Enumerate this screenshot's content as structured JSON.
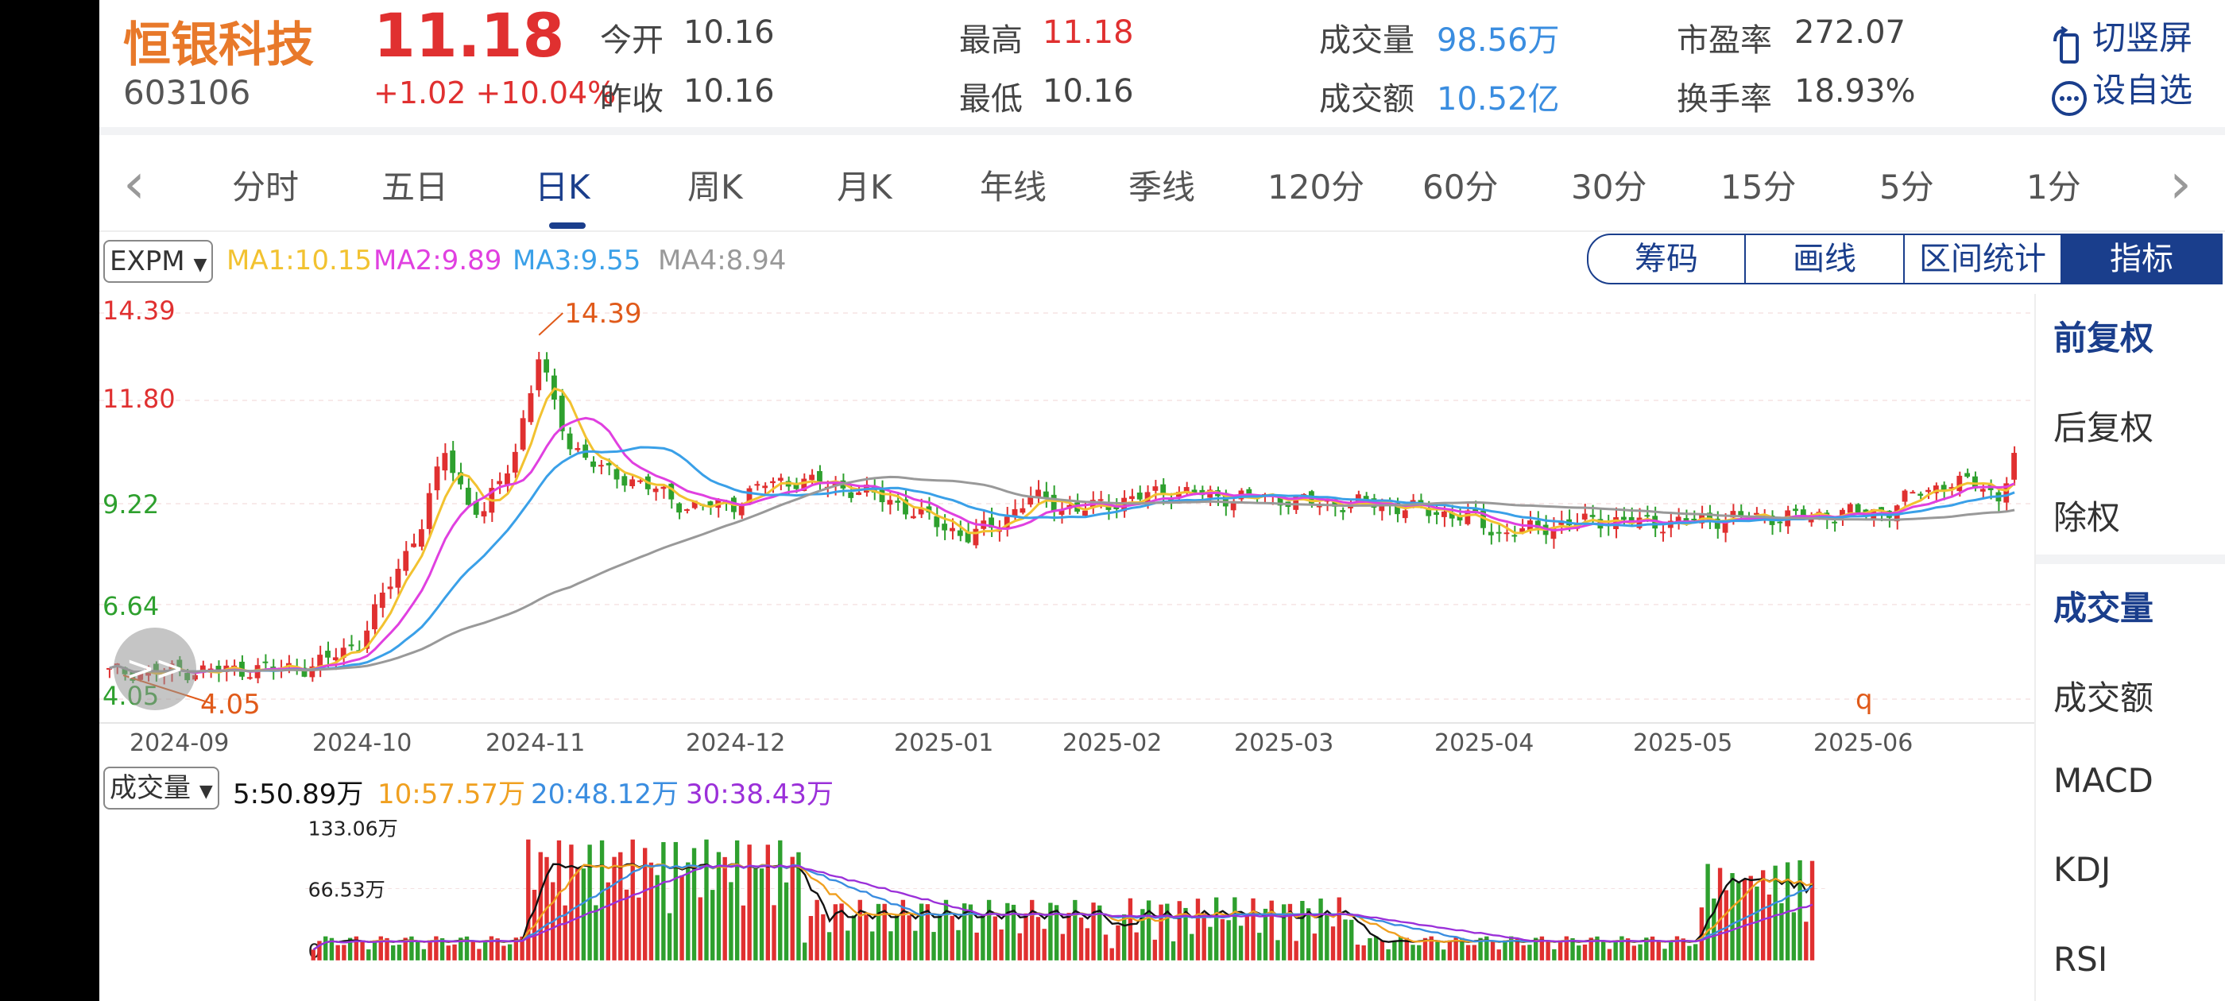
{
  "header": {
    "name": "恒银科技",
    "code": "603106",
    "price": "11.18",
    "change": "+1.02",
    "change_pct": "+10.04%",
    "quotes": [
      {
        "label": "今开",
        "value": "10.16",
        "color": "#444444"
      },
      {
        "label": "昨收",
        "value": "10.16",
        "color": "#444444"
      },
      {
        "label": "最高",
        "value": "11.18",
        "color": "#e03030"
      },
      {
        "label": "最低",
        "value": "10.16",
        "color": "#444444"
      },
      {
        "label": "成交量",
        "value": "98.56万",
        "color": "#3a8de0"
      },
      {
        "label": "成交额",
        "value": "10.52亿",
        "color": "#3a8de0"
      },
      {
        "label": "市盈率",
        "value": "272.07",
        "color": "#444444"
      },
      {
        "label": "换手率",
        "value": "18.93%",
        "color": "#444444"
      }
    ],
    "actions": [
      {
        "icon": "rotate-screen-icon",
        "label": "切竖屏"
      },
      {
        "icon": "more-circle-icon",
        "label": "设自选"
      }
    ]
  },
  "tabs": {
    "items": [
      "分时",
      "五日",
      "日K",
      "周K",
      "月K",
      "年线",
      "季线",
      "120分",
      "60分",
      "30分",
      "15分",
      "5分",
      "1分"
    ],
    "active": "日K",
    "prev_icon": "chevron-left-icon",
    "next_icon": "chevron-right-icon"
  },
  "toolbar": {
    "indicator_select": "EXPM",
    "ma_values": [
      {
        "text": "MA1:10.15",
        "color": "#f2c230"
      },
      {
        "text": "MA2:9.89",
        "color": "#e040e0"
      },
      {
        "text": "MA3:9.55",
        "color": "#3aa0e8"
      },
      {
        "text": "MA4:8.94",
        "color": "#999999"
      }
    ],
    "buttons": [
      "筹码",
      "画线",
      "区间统计",
      "指标"
    ],
    "active_button": "指标"
  },
  "side_menu": {
    "items": [
      "前复权",
      "后复权",
      "除权",
      "成交量",
      "成交额",
      "MACD",
      "KDJ",
      "RSI"
    ],
    "active": [
      "前复权",
      "成交量"
    ]
  },
  "price_chart": {
    "y_labels": [
      {
        "text": "14.39",
        "color": "#e03030"
      },
      {
        "text": "11.80",
        "color": "#e03030"
      },
      {
        "text": "9.22",
        "color": "#2ea02e"
      },
      {
        "text": "6.64",
        "color": "#2ea02e"
      },
      {
        "text": "4.05",
        "color": "#2ea02e"
      }
    ],
    "x_labels": [
      "2024-09",
      "2024-10",
      "2024-11",
      "2024-12",
      "2025-01",
      "2025-02",
      "2025-03",
      "2025-04",
      "2025-05",
      "2025-06"
    ],
    "max_label": "14.39",
    "min_label": "4.05",
    "marker": "q"
  },
  "volume": {
    "select": "成交量",
    "ma_values": [
      {
        "text": "5:50.89万",
        "color": "#111111"
      },
      {
        "text": "10:57.57万",
        "color": "#f0a020"
      },
      {
        "text": "20:48.12万",
        "color": "#3a8de0"
      },
      {
        "text": "30:38.43万",
        "color": "#9b30d9"
      }
    ],
    "y_labels": [
      "133.06万",
      "66.53万",
      "0"
    ]
  },
  "float_button": ">>"
}
